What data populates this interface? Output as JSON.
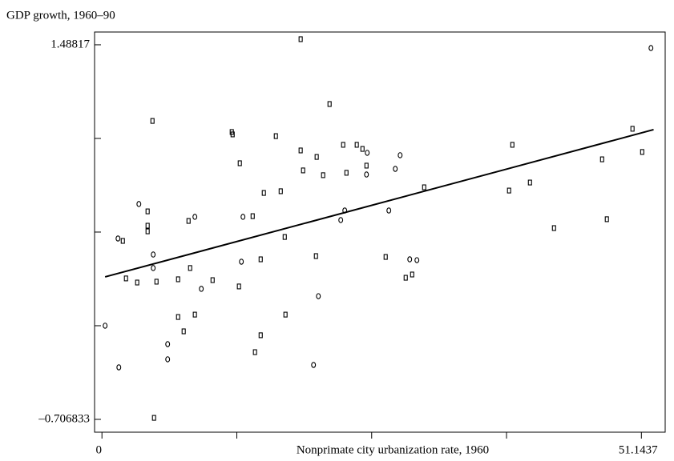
{
  "chart_data": {
    "type": "scatter",
    "title": "GDP growth, 1960–90",
    "xlabel": "Nonprimate city urbanization rate, 1960",
    "xlim": [
      -0.7,
      53.4
    ],
    "ylim": [
      -0.782,
      1.563
    ],
    "xticks": [
      0,
      51.1437
    ],
    "yticks": [
      {
        "value": -0.706833,
        "label": "–0.706833"
      },
      1.48817
    ],
    "color": "#000000",
    "series": [
      {
        "marker": "circle",
        "x": [
          0.3,
          1.52,
          1.6,
          3.5,
          4.86,
          4.86,
          6.23,
          6.23,
          8.81,
          9.42,
          13.37,
          13.22,
          20.52,
          20.06,
          22.64,
          23.02,
          25.08,
          25.15,
          27.2,
          27.81,
          28.27,
          29.18,
          29.86,
          52.05
        ],
        "values": [
          -0.158,
          0.353,
          -0.402,
          0.555,
          0.259,
          0.18,
          -0.266,
          -0.355,
          0.48,
          0.058,
          0.48,
          0.217,
          0.015,
          -0.388,
          0.461,
          0.517,
          0.728,
          0.855,
          0.517,
          0.761,
          0.841,
          0.231,
          0.226,
          1.469
        ]
      },
      {
        "marker": "rect",
        "x": [
          1.98,
          2.28,
          3.34,
          4.33,
          4.33,
          4.33,
          4.79,
          5.17,
          4.94,
          7.22,
          7.22,
          7.75,
          8.21,
          8.36,
          8.81,
          10.49,
          12.31,
          12.39,
          13.07,
          12.99,
          14.29,
          14.51,
          15.05,
          15.05,
          15.35,
          16.49,
          16.95,
          17.33,
          17.4,
          18.84,
          18.84,
          19.07,
          20.29,
          20.36,
          20.97,
          21.58,
          22.87,
          23.18,
          24.16,
          24.7,
          25.08,
          26.9,
          28.8,
          29.41,
          30.55,
          38.6,
          38.91,
          40.58,
          42.86,
          47.42,
          47.87,
          50.3,
          51.22
        ],
        "values": [
          0.339,
          0.119,
          0.095,
          0.512,
          0.428,
          0.395,
          1.042,
          0.1,
          -0.698,
          -0.107,
          0.114,
          -0.191,
          0.456,
          0.18,
          -0.093,
          0.109,
          0.977,
          0.963,
          0.794,
          0.072,
          0.484,
          -0.313,
          -0.214,
          0.231,
          0.62,
          0.953,
          0.63,
          0.362,
          -0.093,
          1.521,
          0.869,
          0.752,
          0.25,
          0.831,
          0.724,
          1.141,
          0.902,
          0.738,
          0.902,
          0.878,
          0.78,
          0.245,
          0.123,
          0.142,
          0.653,
          0.634,
          0.902,
          0.681,
          0.414,
          0.817,
          0.466,
          0.996,
          0.86
        ]
      }
    ],
    "trendline": {
      "x": [
        0.3,
        52.3
      ],
      "y": [
        0.128,
        0.991
      ]
    }
  }
}
